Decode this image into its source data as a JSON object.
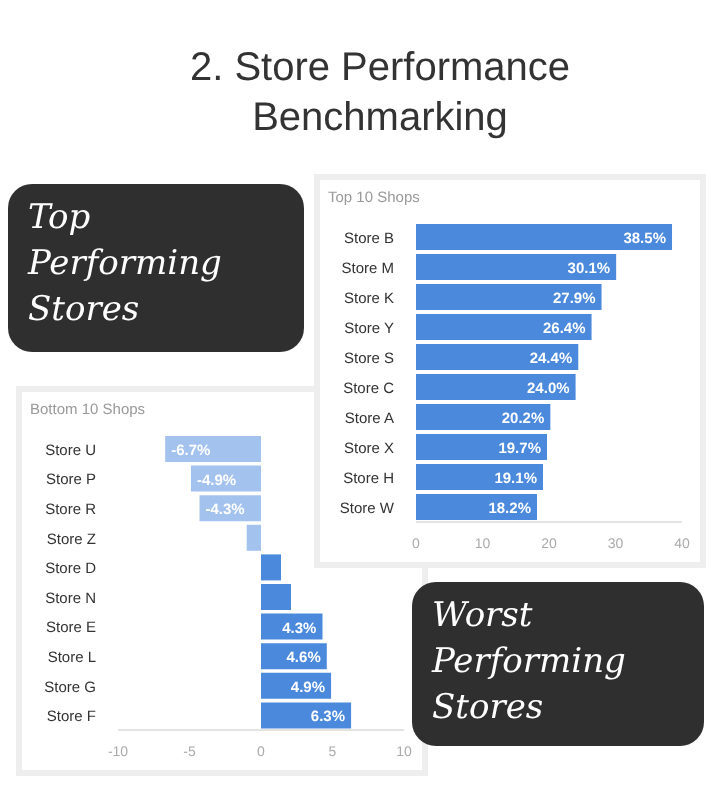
{
  "chart_data": [
    {
      "type": "bar",
      "orientation": "horizontal",
      "title": "Top 10 Shops",
      "annotations": [
        "2. Store Performance Benchmarking",
        "Top Performing Stores"
      ],
      "categories": [
        "Store B",
        "Store M",
        "Store K",
        "Store Y",
        "Store S",
        "Store C",
        "Store A",
        "Store X",
        "Store H",
        "Store W"
      ],
      "values": [
        38.5,
        30.1,
        27.9,
        26.4,
        24.4,
        24.0,
        20.2,
        19.7,
        19.1,
        18.2
      ],
      "value_labels": [
        "38.5%",
        "30.1%",
        "27.9%",
        "26.4%",
        "24.4%",
        "24.0%",
        "20.2%",
        "19.7%",
        "19.1%",
        "18.2%"
      ],
      "color": "#4a89dc",
      "xlim": [
        0,
        40
      ],
      "xticks": [
        0,
        10,
        20,
        30,
        40
      ],
      "grid": false,
      "legend": false
    },
    {
      "type": "bar",
      "orientation": "horizontal",
      "title": "Bottom 10 Shops",
      "annotations": [
        "Worst Performing Stores"
      ],
      "categories": [
        "Store U",
        "Store P",
        "Store R",
        "Store Z",
        "Store D",
        "Store N",
        "Store E",
        "Store L",
        "Store G",
        "Store F"
      ],
      "values": [
        -6.7,
        -4.9,
        -4.3,
        -1.0,
        1.4,
        2.1,
        4.3,
        4.6,
        4.9,
        6.3
      ],
      "value_labels": [
        "-6.7%",
        "-4.9%",
        "-4.3%",
        null,
        null,
        null,
        "4.3%",
        "4.6%",
        "4.9%",
        "6.3%"
      ],
      "colors": [
        "#a4c2ee",
        "#a4c2ee",
        "#a4c2ee",
        "#a4c2ee",
        "#4a89dc",
        "#4a89dc",
        "#4a89dc",
        "#4a89dc",
        "#4a89dc",
        "#4a89dc"
      ],
      "xlim": [
        -10,
        10
      ],
      "xticks": [
        -10,
        -5,
        0,
        5,
        10
      ],
      "grid": false,
      "legend": false
    }
  ]
}
